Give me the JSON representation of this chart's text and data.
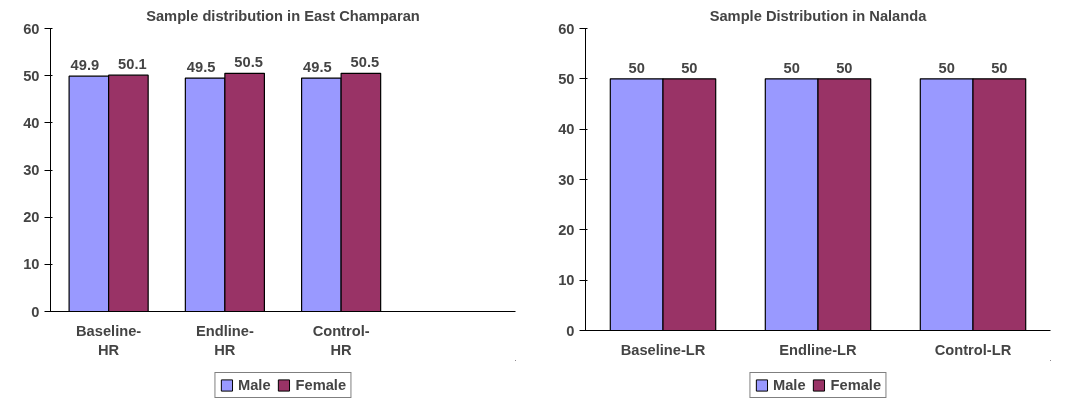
{
  "chart_data": [
    {
      "type": "bar",
      "title": "Sample distribution in East Champaran",
      "categories": [
        "Baseline-HR",
        "Endline-HR",
        "Control-HR",
        null
      ],
      "series": [
        {
          "name": "Male",
          "color": "#9999ff",
          "values": [
            49.9,
            49.5,
            49.5,
            null
          ]
        },
        {
          "name": "Female",
          "color": "#993366",
          "values": [
            50.1,
            50.5,
            50.5,
            null
          ]
        }
      ],
      "ylim": [
        0,
        60
      ],
      "yticks": [
        0,
        10,
        20,
        30,
        40,
        50,
        60
      ],
      "grid": false,
      "legend": "bottom",
      "data_labels": true
    },
    {
      "type": "bar",
      "title": "Sample Distribution in Nalanda",
      "categories": [
        "Baseline-LR",
        "Endline-LR",
        "Control-LR"
      ],
      "series": [
        {
          "name": "Male",
          "color": "#9999ff",
          "values": [
            50,
            50,
            50
          ]
        },
        {
          "name": "Female",
          "color": "#993366",
          "values": [
            50,
            50,
            50
          ]
        }
      ],
      "ylim": [
        0,
        60
      ],
      "yticks": [
        0,
        10,
        20,
        30,
        40,
        50,
        60
      ],
      "grid": false,
      "legend": "bottom",
      "data_labels": true
    }
  ]
}
